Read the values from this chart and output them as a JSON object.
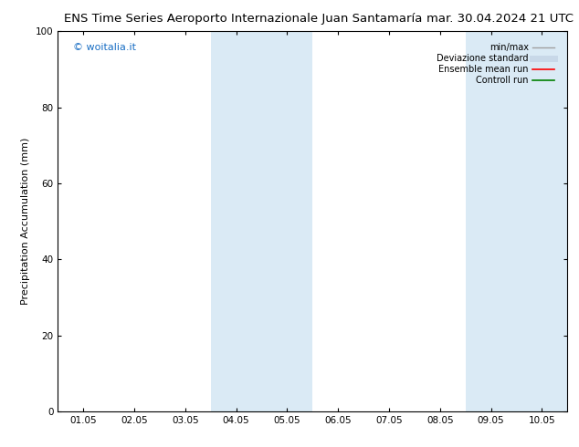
{
  "title_left": "ENS Time Series Aeroporto Internazionale Juan Santamaría",
  "title_right": "mar. 30.04.2024 21 UTC",
  "ylabel": "Precipitation Accumulation (mm)",
  "ylim": [
    0,
    100
  ],
  "yticks": [
    0,
    20,
    40,
    60,
    80,
    100
  ],
  "x_labels": [
    "01.05",
    "02.05",
    "03.05",
    "04.05",
    "05.05",
    "06.05",
    "07.05",
    "08.05",
    "09.05",
    "10.05"
  ],
  "x_values": [
    0,
    1,
    2,
    3,
    4,
    5,
    6,
    7,
    8,
    9
  ],
  "xlim": [
    -0.5,
    9.5
  ],
  "shaded_bands": [
    {
      "x_start": 2.5,
      "x_end": 3.5,
      "color": "#daeaf5"
    },
    {
      "x_start": 3.5,
      "x_end": 4.5,
      "color": "#daeaf5"
    },
    {
      "x_start": 7.5,
      "x_end": 8.5,
      "color": "#daeaf5"
    },
    {
      "x_start": 8.5,
      "x_end": 9.5,
      "color": "#daeaf5"
    }
  ],
  "watermark": "© woitalia.it",
  "watermark_color": "#1a6fc4",
  "legend_items": [
    {
      "label": "min/max",
      "color": "#a0a0a0",
      "lw": 1.0,
      "ls": "-"
    },
    {
      "label": "Deviazione standard",
      "color": "#c8d8e8",
      "lw": 5,
      "ls": "-"
    },
    {
      "label": "Ensemble mean run",
      "color": "#ff0000",
      "lw": 1.2,
      "ls": "-"
    },
    {
      "label": "Controll run",
      "color": "#008000",
      "lw": 1.2,
      "ls": "-"
    }
  ],
  "title_fontsize": 9.5,
  "axis_fontsize": 8,
  "tick_fontsize": 7.5,
  "watermark_fontsize": 8,
  "legend_fontsize": 7,
  "bg_color": "#ffffff",
  "plot_bg_color": "#ffffff"
}
